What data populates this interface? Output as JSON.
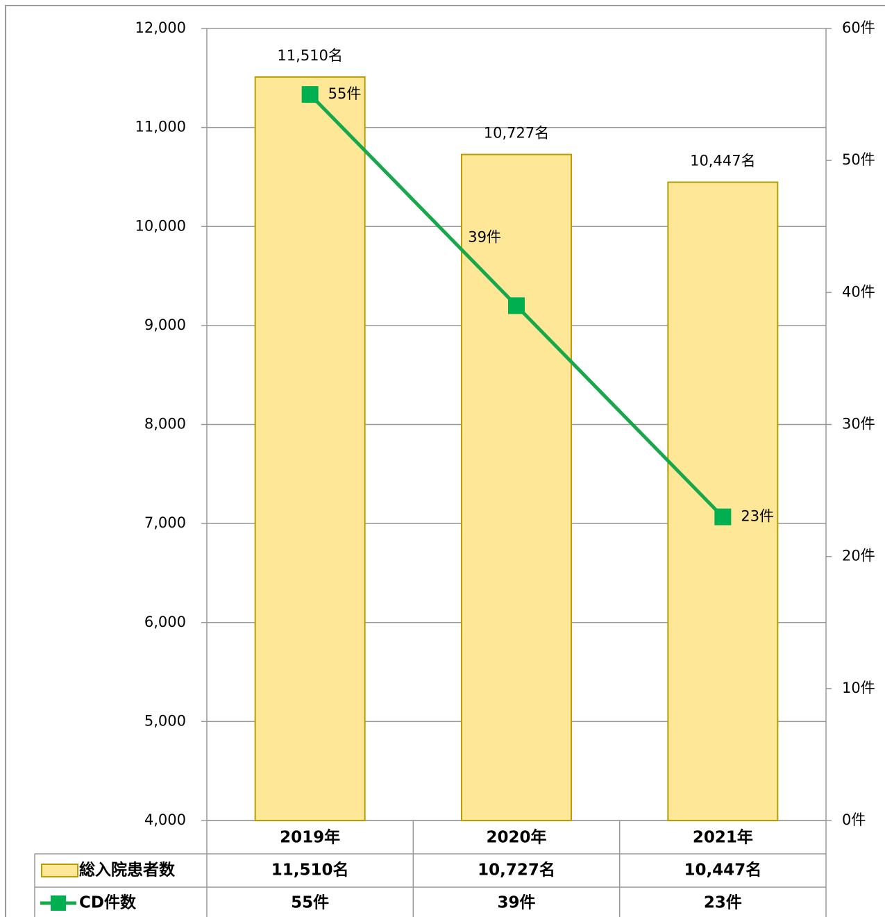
{
  "chart_data": {
    "type": "bar",
    "categories": [
      "2019年",
      "2020年",
      "2021年"
    ],
    "series": [
      {
        "name": "総入院患者数",
        "type": "bar",
        "color": "#fee898",
        "edge": "#b89c00",
        "values": [
          11510,
          10727,
          10447
        ],
        "value_labels": [
          "11,510名",
          "10,727名",
          "10,447名"
        ]
      },
      {
        "name": "CD件数",
        "type": "line",
        "axis": "y2",
        "color": "#18a84c",
        "values": [
          55,
          39,
          23
        ],
        "value_labels": [
          "55件",
          "39件",
          "23件"
        ]
      }
    ],
    "ylim": [
      4000,
      12000
    ],
    "yticks": [
      {
        "value": 4000,
        "label": "4,000"
      },
      {
        "value": 5000,
        "label": "5,000"
      },
      {
        "value": 6000,
        "label": "6,000"
      },
      {
        "value": 7000,
        "label": "7,000"
      },
      {
        "value": 8000,
        "label": "8,000"
      },
      {
        "value": 9000,
        "label": "9,000"
      },
      {
        "value": 10000,
        "label": "10,000"
      },
      {
        "value": 11000,
        "label": "11,000"
      },
      {
        "value": 12000,
        "label": "12,000"
      }
    ],
    "y2lim": [
      0,
      60
    ],
    "y2ticks": [
      {
        "value": 0,
        "label": "0件"
      },
      {
        "value": 10,
        "label": "10件"
      },
      {
        "value": 20,
        "label": "20件"
      },
      {
        "value": 30,
        "label": "30件"
      },
      {
        "value": 40,
        "label": "40件"
      },
      {
        "value": 50,
        "label": "50件"
      },
      {
        "value": 60,
        "label": "60件"
      }
    ],
    "grid": true
  }
}
